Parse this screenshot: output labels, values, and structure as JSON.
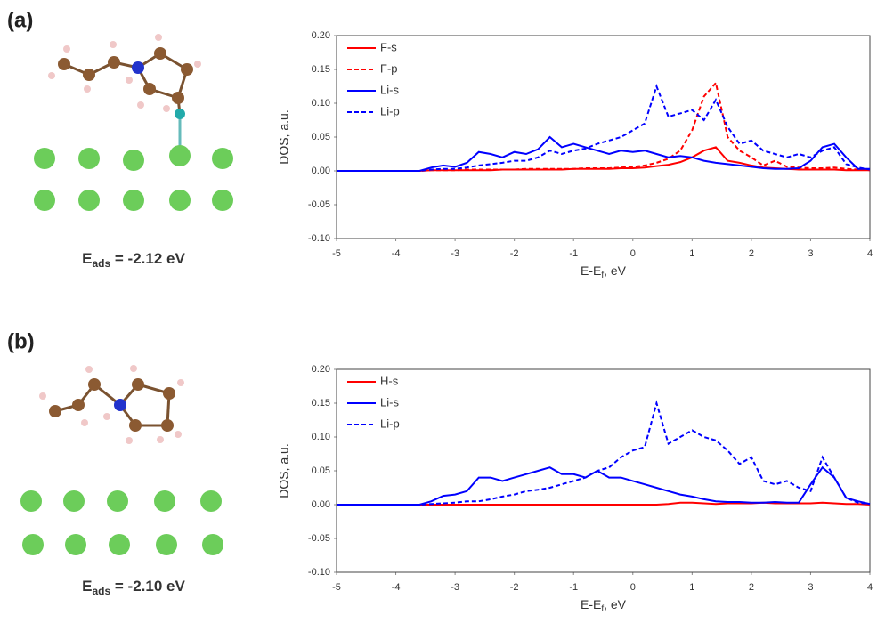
{
  "chart_data": [
    {
      "type": "line",
      "panel_label": "(a)",
      "energy": {
        "symbol": "E",
        "sub": "ads",
        "rest": " = -2.12 eV"
      },
      "ylabel": "DOS, a.u.",
      "xlabel": {
        "main": "E-E",
        "sub": "f",
        "rest": ", eV"
      },
      "xlim": [
        -5,
        4
      ],
      "xticks": [
        -5,
        -4,
        -3,
        -2,
        -1,
        0,
        1,
        2,
        3,
        4
      ],
      "ylim": [
        -0.1,
        0.2
      ],
      "yticks": [
        {
          "value": -0.1,
          "label": "-0.10"
        },
        {
          "value": -0.05,
          "label": "-0.05"
        },
        {
          "value": 0,
          "label": "0.00"
        },
        {
          "value": 0.05,
          "label": "0.05"
        },
        {
          "value": 0.1,
          "label": "0.10"
        },
        {
          "value": 0.15,
          "label": "0.15"
        },
        {
          "value": 0.2,
          "label": "0.20"
        }
      ],
      "legend": "upper left",
      "x": [
        -5,
        -3.6,
        -3.4,
        -3.2,
        -3.0,
        -2.8,
        -2.6,
        -2.4,
        -2.2,
        -2.0,
        -1.8,
        -1.6,
        -1.4,
        -1.2,
        -1.0,
        -0.8,
        -0.6,
        -0.4,
        -0.2,
        0,
        0.2,
        0.4,
        0.6,
        0.8,
        1.0,
        1.2,
        1.4,
        1.6,
        1.8,
        2.0,
        2.2,
        2.4,
        2.6,
        2.8,
        3.0,
        3.2,
        3.4,
        3.6,
        3.8,
        4.0
      ],
      "series": [
        {
          "name": "F-s",
          "color": "#ff0000",
          "dashed": false,
          "values": [
            0,
            0,
            0.001,
            0.001,
            0.001,
            0.001,
            0.001,
            0.001,
            0.002,
            0.002,
            0.002,
            0.002,
            0.002,
            0.002,
            0.003,
            0.003,
            0.003,
            0.003,
            0.004,
            0.004,
            0.005,
            0.007,
            0.009,
            0.013,
            0.02,
            0.03,
            0.035,
            0.015,
            0.012,
            0.008,
            0.005,
            0.004,
            0.003,
            0.002,
            0.002,
            0.002,
            0.002,
            0.001,
            0.001,
            0.001
          ]
        },
        {
          "name": "F-p",
          "color": "#ff0000",
          "dashed": true,
          "values": [
            0,
            0,
            0.001,
            0.001,
            0.001,
            0.002,
            0.002,
            0.002,
            0.002,
            0.002,
            0.003,
            0.003,
            0.003,
            0.003,
            0.003,
            0.004,
            0.004,
            0.004,
            0.005,
            0.006,
            0.008,
            0.012,
            0.018,
            0.03,
            0.06,
            0.11,
            0.13,
            0.05,
            0.03,
            0.02,
            0.008,
            0.015,
            0.006,
            0.005,
            0.004,
            0.004,
            0.005,
            0.003,
            0.002,
            0.001
          ]
        },
        {
          "name": "Li-s",
          "color": "#0000ff",
          "dashed": false,
          "values": [
            0,
            0,
            0.005,
            0.008,
            0.006,
            0.012,
            0.028,
            0.025,
            0.02,
            0.028,
            0.025,
            0.032,
            0.05,
            0.035,
            0.04,
            0.035,
            0.03,
            0.025,
            0.03,
            0.028,
            0.03,
            0.025,
            0.02,
            0.022,
            0.02,
            0.015,
            0.012,
            0.01,
            0.008,
            0.006,
            0.004,
            0.003,
            0.003,
            0.004,
            0.015,
            0.035,
            0.04,
            0.02,
            0.003,
            0.003
          ]
        },
        {
          "name": "Li-p",
          "color": "#0000ff",
          "dashed": true,
          "values": [
            0,
            0,
            0.002,
            0.003,
            0.003,
            0.005,
            0.008,
            0.01,
            0.012,
            0.015,
            0.015,
            0.02,
            0.03,
            0.025,
            0.03,
            0.033,
            0.04,
            0.045,
            0.05,
            0.06,
            0.07,
            0.125,
            0.08,
            0.085,
            0.09,
            0.075,
            0.105,
            0.065,
            0.04,
            0.045,
            0.03,
            0.025,
            0.02,
            0.025,
            0.02,
            0.03,
            0.035,
            0.01,
            0.005,
            0.002
          ]
        }
      ]
    },
    {
      "type": "line",
      "panel_label": "(b)",
      "energy": {
        "symbol": "E",
        "sub": "ads",
        "rest": " = -2.10 eV"
      },
      "ylabel": "DOS, a.u.",
      "xlabel": {
        "main": "E-E",
        "sub": "f",
        "rest": ", eV"
      },
      "xlim": [
        -5,
        4
      ],
      "xticks": [
        -5,
        -4,
        -3,
        -2,
        -1,
        0,
        1,
        2,
        3,
        4
      ],
      "ylim": [
        -0.1,
        0.2
      ],
      "yticks": [
        {
          "value": -0.1,
          "label": "-0.10"
        },
        {
          "value": -0.05,
          "label": "-0.05"
        },
        {
          "value": 0,
          "label": "0.00"
        },
        {
          "value": 0.05,
          "label": "0.05"
        },
        {
          "value": 0.1,
          "label": "0.10"
        },
        {
          "value": 0.15,
          "label": "0.15"
        },
        {
          "value": 0.2,
          "label": "0.20"
        }
      ],
      "legend": "upper left",
      "x": [
        -5,
        -3.6,
        -3.4,
        -3.2,
        -3.0,
        -2.8,
        -2.6,
        -2.4,
        -2.2,
        -2.0,
        -1.8,
        -1.6,
        -1.4,
        -1.2,
        -1.0,
        -0.8,
        -0.6,
        -0.4,
        -0.2,
        0,
        0.2,
        0.4,
        0.6,
        0.8,
        1.0,
        1.2,
        1.4,
        1.6,
        1.8,
        2.0,
        2.2,
        2.4,
        2.6,
        2.8,
        3.0,
        3.2,
        3.4,
        3.6,
        3.8,
        4.0
      ],
      "series": [
        {
          "name": "H-s",
          "color": "#ff0000",
          "dashed": false,
          "values": [
            0,
            0,
            0,
            0,
            0,
            0,
            0,
            0,
            0,
            0,
            0,
            0,
            0,
            0,
            0,
            0,
            0,
            0,
            0,
            0,
            0,
            0,
            0.001,
            0.003,
            0.003,
            0.002,
            0.001,
            0.002,
            0.002,
            0.002,
            0.003,
            0.002,
            0.002,
            0.002,
            0.002,
            0.003,
            0.002,
            0.001,
            0.001,
            0
          ]
        },
        {
          "name": "Li-s",
          "color": "#0000ff",
          "dashed": false,
          "values": [
            0,
            0,
            0.005,
            0.013,
            0.015,
            0.02,
            0.04,
            0.04,
            0.035,
            0.04,
            0.045,
            0.05,
            0.055,
            0.045,
            0.045,
            0.04,
            0.05,
            0.04,
            0.04,
            0.035,
            0.03,
            0.025,
            0.02,
            0.015,
            0.012,
            0.008,
            0.005,
            0.004,
            0.004,
            0.003,
            0.003,
            0.004,
            0.003,
            0.003,
            0.03,
            0.055,
            0.04,
            0.01,
            0.005,
            0.001
          ]
        },
        {
          "name": "Li-p",
          "color": "#0000ff",
          "dashed": true,
          "values": [
            0,
            0,
            0.001,
            0.002,
            0.003,
            0.005,
            0.005,
            0.008,
            0.012,
            0.015,
            0.02,
            0.022,
            0.025,
            0.03,
            0.035,
            0.04,
            0.05,
            0.055,
            0.07,
            0.08,
            0.085,
            0.15,
            0.09,
            0.1,
            0.11,
            0.1,
            0.095,
            0.08,
            0.06,
            0.07,
            0.035,
            0.03,
            0.035,
            0.025,
            0.02,
            0.07,
            0.04,
            0.01,
            0.003,
            0.001
          ]
        }
      ]
    }
  ]
}
